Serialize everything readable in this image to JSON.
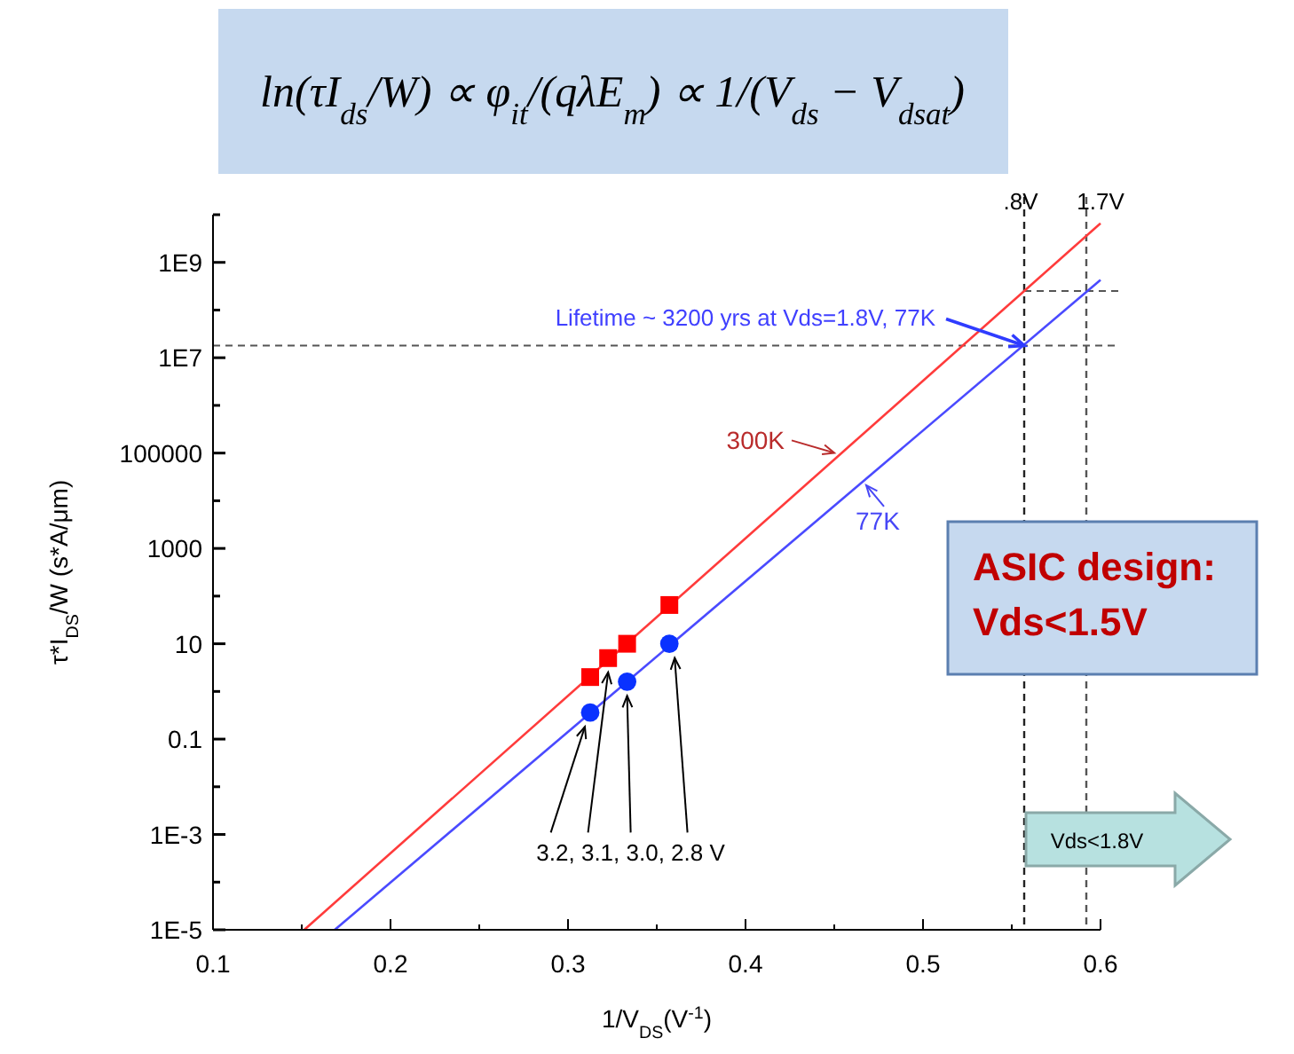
{
  "chart_data": {
    "type": "line",
    "title": "ln(τI$_{ds}$/W) ∝ φ$_{it}$/(qλE$_{m}$) ∝ 1/(V$_{ds}$ − V$_{dsat}$)",
    "xlabel": "1/V$_{DS}$(V$^{-1}$)",
    "ylabel": "τ*I$_{DS}$/W (s*A/μm)",
    "log": "y",
    "grid": false,
    "legend": false,
    "xlim": [
      0.1,
      0.6
    ],
    "xticks": [
      0.1,
      {
        "value": 0.15,
        "label": null
      },
      0.2,
      {
        "value": 0.25,
        "label": null
      },
      0.3,
      {
        "value": 0.35,
        "label": null
      },
      0.4,
      {
        "value": 0.45,
        "label": null
      },
      0.5,
      {
        "value": 0.55,
        "label": null
      },
      0.6
    ],
    "ylim": [
      1e-05,
      10000000000.0
    ],
    "yticks": [
      {
        "value": 1e-05,
        "label": "1E-5"
      },
      {
        "value": 0.0001,
        "label": null
      },
      {
        "value": 0.001,
        "label": "1E-3"
      },
      {
        "value": 0.01,
        "label": null
      },
      0.1,
      {
        "value": 1,
        "label": null
      },
      10,
      {
        "value": 100,
        "label": null
      },
      1000,
      {
        "value": 10000,
        "label": null
      },
      100000,
      {
        "value": 1000000.0,
        "label": null
      },
      {
        "value": 10000000.0,
        "label": "1E7"
      },
      {
        "value": 100000000.0,
        "label": null
      },
      {
        "value": 1000000000.0,
        "label": "1E9"
      },
      {
        "value": 10000000000.0,
        "label": null
      }
    ],
    "series": [
      {
        "name": "300K",
        "color": "#ff3b3b",
        "x": [
          0.1514,
          0.6
        ],
        "values": [
          1e-05,
          6600000000.0
        ],
        "marker": "none",
        "line_style": "solid"
      },
      {
        "name": "77K",
        "color": "#4a4aff",
        "x": [
          0.1686,
          0.6
        ],
        "values": [
          1e-05,
          430000000.0
        ],
        "marker": "none",
        "line_style": "solid"
      },
      {
        "type": "scatter",
        "color": "#ff0000",
        "x": [
          0.3125,
          0.3226,
          0.3333,
          0.3571
        ],
        "values": [
          2,
          5,
          10,
          65
        ],
        "marker": "square"
      },
      {
        "type": "scatter",
        "color": "#0a32ff",
        "x": [
          0.3125,
          0.3333,
          0.3571
        ],
        "values": [
          0.36,
          1.6,
          10
        ],
        "marker": "circle"
      }
    ],
    "ref_lines": [
      {
        "axis": "x",
        "value": 0.557,
        "label": ".8V",
        "color": "#222222",
        "line_style": "dashed"
      },
      {
        "axis": "x",
        "value": 0.592,
        "label": "1.7V",
        "color": "#555555",
        "line_style": "dashed"
      },
      {
        "axis": "y",
        "value": 18000000.0,
        "color": "#555555",
        "line_style": "dashed"
      },
      {
        "axis": "y",
        "value": 250000000.0,
        "color": "#555555",
        "line_style": "dashed"
      }
    ],
    "annotations": [
      {
        "text": "Lifetime ~ 3200 yrs at Vds=1.8V, 77K",
        "x": 0.557,
        "y": 18000000.0
      },
      {
        "text": "3.2, 3.1, 3.0, 2.8 V",
        "x": 0.3333,
        "y": 1.6
      },
      "ASIC design: Vds<1.5V",
      "Vds<1.8V"
    ]
  }
}
